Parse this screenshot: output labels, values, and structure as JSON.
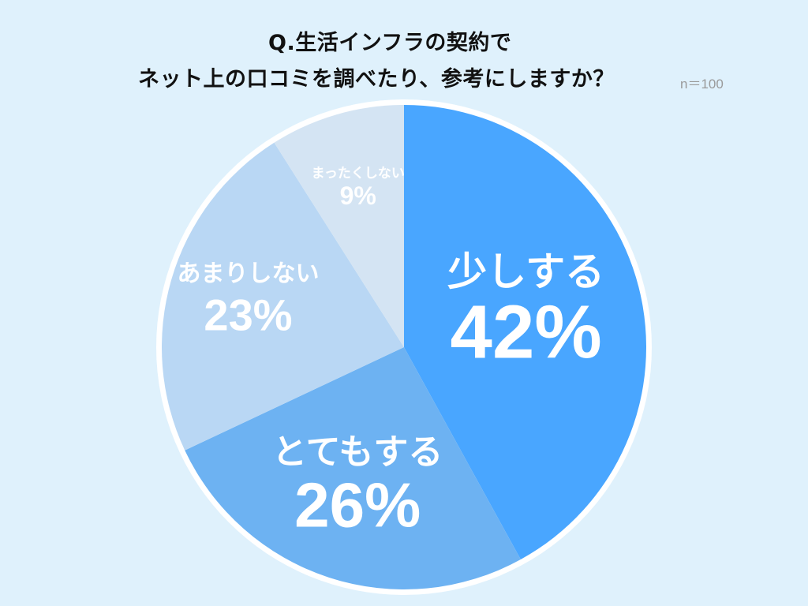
{
  "title_line1": "Q.生活インフラの契約で",
  "title_line2": "ネット上の口コミを調べたり、参考にしますか？",
  "sample_size": "n＝100",
  "chart_data": {
    "type": "pie",
    "title": "Q.生活インフラの契約で ネット上の口コミを調べたり、参考にしますか？",
    "slices": [
      {
        "label": "少しする",
        "value": 42,
        "display": "42%",
        "color": "#49a6ff"
      },
      {
        "label": "とてもする",
        "value": 26,
        "display": "26%",
        "color": "#6db2f2"
      },
      {
        "label": "あまりしない",
        "value": 23,
        "display": "23%",
        "color": "#b9d7f4"
      },
      {
        "label": "まったくしない",
        "value": 9,
        "display": "9%",
        "color": "#d4e4f3"
      }
    ],
    "start": "12 o'clock",
    "direction": "clockwise",
    "legend": "none"
  }
}
